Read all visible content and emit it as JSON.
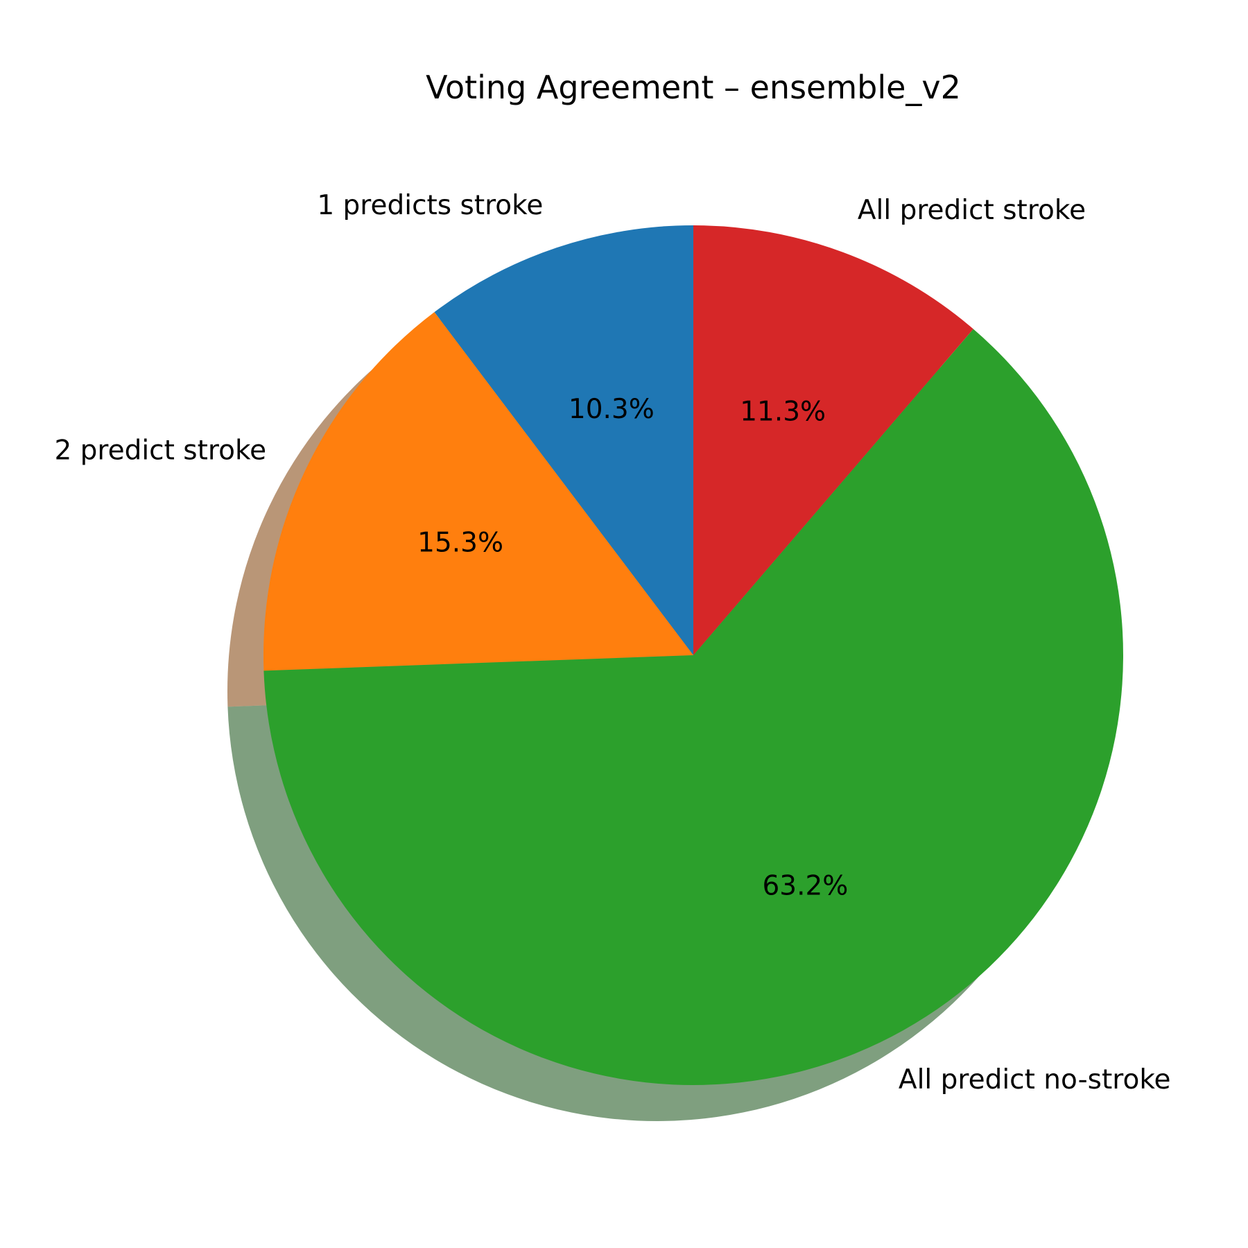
{
  "chart_data": {
    "type": "pie",
    "title": "Voting Agreement – ensemble_v2",
    "slices": [
      {
        "label": "1 predicts stroke",
        "value": 10.3,
        "pct_label": "10.3%",
        "color": "#1f77b4"
      },
      {
        "label": "2 predict stroke",
        "value": 15.3,
        "pct_label": "15.3%",
        "color": "#ff7f0e"
      },
      {
        "label": "All predict no-stroke",
        "value": 63.2,
        "pct_label": "63.2%",
        "color": "#2ca02c"
      },
      {
        "label": "All predict stroke",
        "value": 11.3,
        "pct_label": "11.3%",
        "color": "#d62728"
      }
    ],
    "start_angle_deg": 90,
    "direction": "counterclockwise",
    "shadow": true,
    "legend": "none"
  }
}
